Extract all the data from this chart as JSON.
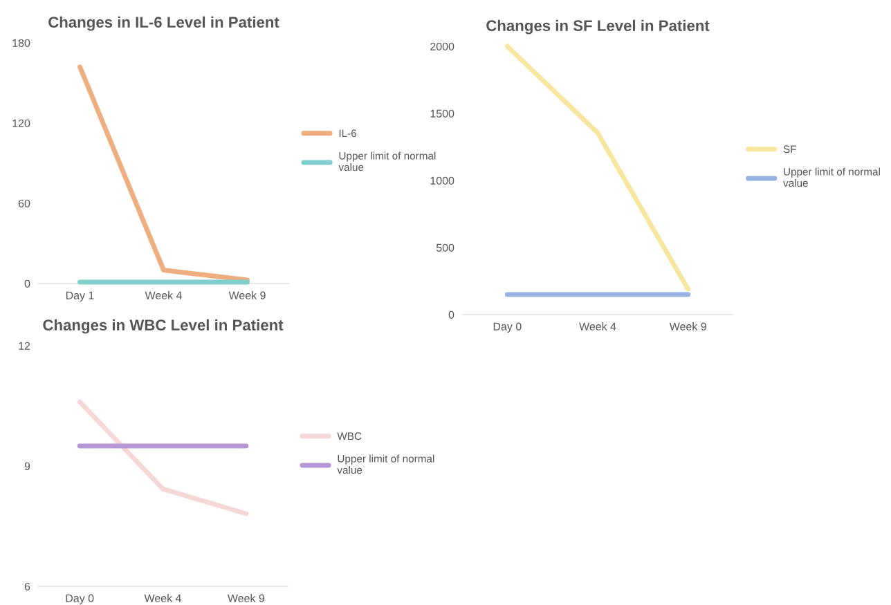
{
  "chart_data": [
    {
      "type": "line",
      "title": "Changes in IL-6 Level in Patient",
      "categories": [
        "Day 1",
        "Week 4",
        "Week 9"
      ],
      "ylim": [
        0,
        180
      ],
      "yticks": [
        0,
        60,
        120,
        180
      ],
      "grid": false,
      "legend": "right",
      "series": [
        {
          "name": "IL-6",
          "color": "#efae80",
          "values": [
            162,
            10,
            2.6
          ]
        },
        {
          "name": "Upper limit of normal value",
          "color": "#80cfcc",
          "values": [
            1,
            1,
            1
          ]
        }
      ]
    },
    {
      "type": "line",
      "title": "Changes in SF Level in Patient",
      "categories": [
        "Day 0",
        "Week 4",
        "Week 9"
      ],
      "ylim": [
        0,
        2000
      ],
      "yticks": [
        0,
        500,
        1000,
        1500,
        2000
      ],
      "grid": false,
      "legend": "right",
      "series": [
        {
          "name": "SF",
          "color": "#f7e6a0",
          "values": [
            2000,
            1355,
            190
          ]
        },
        {
          "name": "Upper limit of normal value",
          "color": "#96b3e3",
          "values": [
            150,
            150,
            150
          ]
        }
      ]
    },
    {
      "type": "line",
      "title": "Changes in WBC Level in Patient",
      "categories": [
        "Day 0",
        "Week 4",
        "Week 9"
      ],
      "ylim": [
        6,
        12
      ],
      "yticks": [
        6,
        9,
        12
      ],
      "grid": false,
      "legend": "right",
      "series": [
        {
          "name": "WBC",
          "color": "#f6d7d7",
          "values": [
            10.6,
            8.43,
            7.81
          ]
        },
        {
          "name": "Upper limit of normal value",
          "color": "#b597d8",
          "values": [
            9.5,
            9.5,
            9.5
          ]
        }
      ]
    }
  ]
}
